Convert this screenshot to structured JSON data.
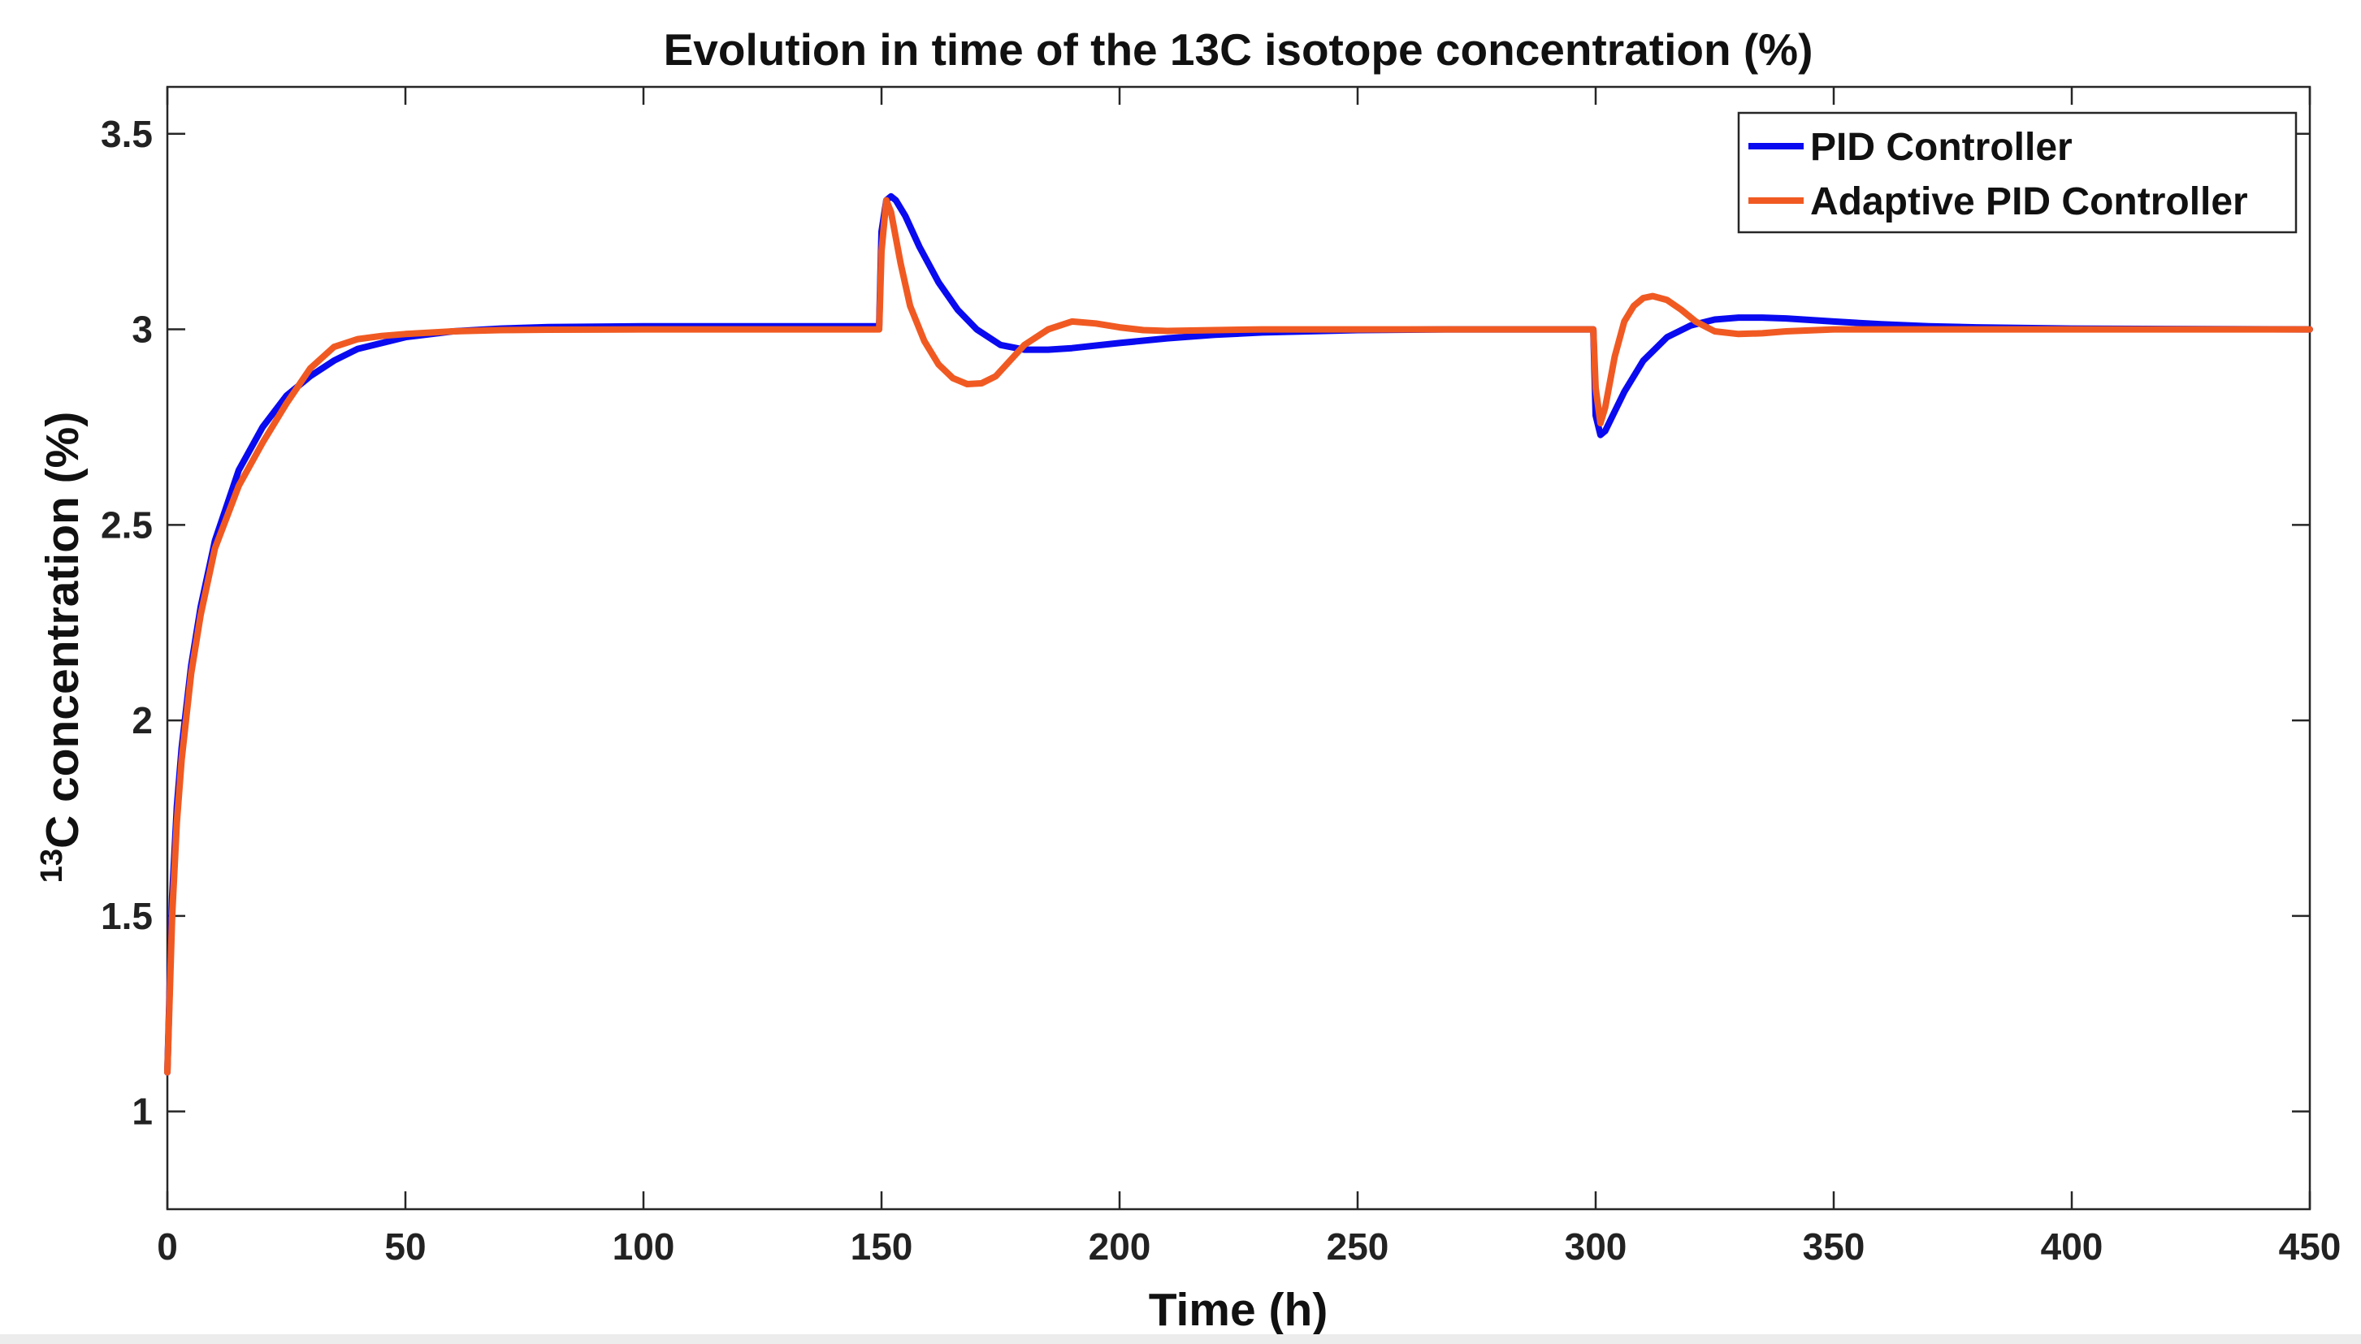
{
  "chart_data": {
    "type": "line",
    "title": "Evolution in time of the 13C isotope concentration (%)",
    "xlabel": "Time (h)",
    "ylabel_sup": "13",
    "ylabel_main": "C concentration (%)",
    "xlim": [
      0,
      450
    ],
    "ylim": [
      0.75,
      3.62
    ],
    "xticks": [
      0,
      50,
      100,
      150,
      200,
      250,
      300,
      350,
      400,
      450
    ],
    "yticks": [
      1,
      1.5,
      2,
      2.5,
      3,
      3.5
    ],
    "ytick_labels": [
      "1",
      "1.5",
      "2",
      "2.5",
      "3",
      "3.5"
    ],
    "grid": false,
    "legend_position": "top-right",
    "series": [
      {
        "name": "PID Controller",
        "color": "#0a0af0",
        "x": [
          0,
          1,
          2,
          3,
          5,
          7,
          10,
          15,
          20,
          25,
          30,
          35,
          40,
          50,
          60,
          70,
          80,
          100,
          120,
          149.5,
          150,
          151,
          152,
          153,
          155,
          158,
          162,
          166,
          170,
          175,
          180,
          185,
          190,
          200,
          210,
          220,
          230,
          250,
          270,
          299.5,
          300,
          301,
          302,
          304,
          306,
          310,
          315,
          320,
          325,
          330,
          335,
          340,
          350,
          360,
          370,
          380,
          400,
          420,
          450
        ],
        "y": [
          1.1,
          1.55,
          1.78,
          1.93,
          2.14,
          2.29,
          2.46,
          2.64,
          2.75,
          2.83,
          2.88,
          2.92,
          2.95,
          2.98,
          2.995,
          3.002,
          3.006,
          3.008,
          3.008,
          3.008,
          3.25,
          3.33,
          3.34,
          3.33,
          3.29,
          3.21,
          3.12,
          3.05,
          3.0,
          2.96,
          2.948,
          2.948,
          2.952,
          2.965,
          2.977,
          2.986,
          2.992,
          2.998,
          3.0,
          3.0,
          2.78,
          2.73,
          2.74,
          2.79,
          2.84,
          2.92,
          2.98,
          3.01,
          3.025,
          3.03,
          3.03,
          3.028,
          3.02,
          3.013,
          3.008,
          3.005,
          3.002,
          3.001,
          3.0
        ]
      },
      {
        "name": "Adaptive PID Controller",
        "color": "#f05a22",
        "x": [
          0,
          1,
          2,
          3,
          5,
          7,
          10,
          15,
          20,
          25,
          30,
          35,
          40,
          45,
          50,
          60,
          70,
          80,
          100,
          120,
          149.5,
          150,
          151,
          152,
          154,
          156,
          159,
          162,
          165,
          168,
          171,
          174,
          177,
          180,
          185,
          190,
          195,
          200,
          205,
          210,
          220,
          230,
          250,
          270,
          299.5,
          300,
          301,
          302,
          304,
          306,
          308,
          310,
          312,
          315,
          318,
          321,
          325,
          330,
          335,
          340,
          350,
          370,
          400,
          450
        ],
        "y": [
          1.1,
          1.5,
          1.74,
          1.9,
          2.12,
          2.27,
          2.44,
          2.6,
          2.71,
          2.81,
          2.9,
          2.955,
          2.975,
          2.983,
          2.988,
          2.995,
          2.998,
          2.999,
          3.0,
          3.0,
          3.0,
          3.2,
          3.33,
          3.3,
          3.17,
          3.06,
          2.97,
          2.91,
          2.875,
          2.86,
          2.862,
          2.88,
          2.92,
          2.96,
          3.0,
          3.02,
          3.015,
          3.005,
          2.998,
          2.996,
          2.998,
          3.0,
          3.0,
          3.0,
          3.0,
          2.85,
          2.76,
          2.8,
          2.93,
          3.02,
          3.06,
          3.08,
          3.085,
          3.075,
          3.05,
          3.02,
          2.995,
          2.988,
          2.99,
          2.995,
          3.0,
          3.0,
          3.0,
          3.0
        ]
      }
    ]
  }
}
